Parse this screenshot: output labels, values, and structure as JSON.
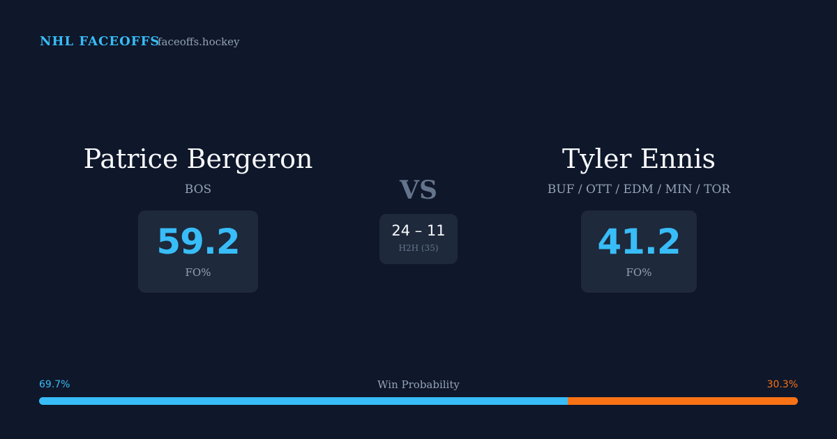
{
  "header": {
    "title": "NHL FACEOFFS",
    "site": "faceoffs.hockey"
  },
  "player_left": {
    "name": "Patrice Bergeron",
    "teams": "BOS",
    "stat": "59.2",
    "stat_label": "FO%"
  },
  "versus": "VS",
  "head_to_head": {
    "score": "24 – 11",
    "label": "H2H (35)"
  },
  "player_right": {
    "name": "Tyler Ennis",
    "teams": "BUF / OTT / EDM / MIN / TOR",
    "stat": "41.2",
    "stat_label": "FO%"
  },
  "win_probability": {
    "title": "Win Probability",
    "left": {
      "value": 69.7,
      "label": "69.7%",
      "color": "#38bdf8"
    },
    "right": {
      "value": 30.3,
      "label": "30.3%",
      "color": "#f97316"
    }
  }
}
